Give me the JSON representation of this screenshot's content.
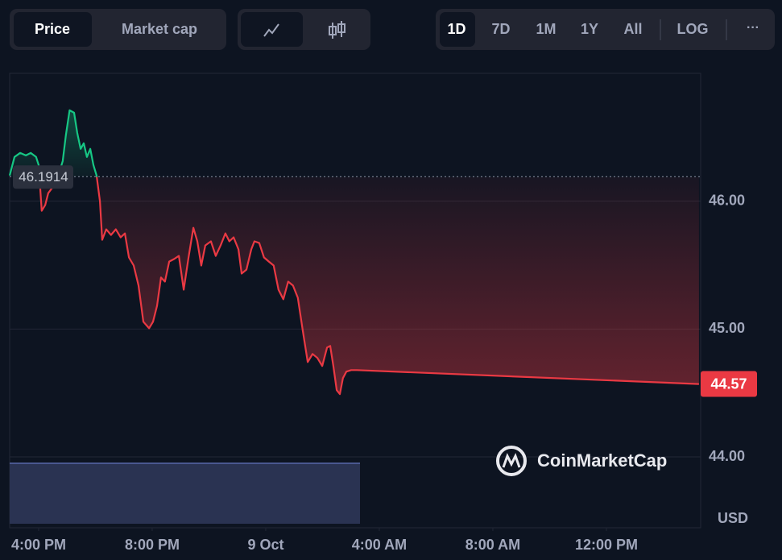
{
  "toolbar": {
    "type_tabs": [
      "Price",
      "Market cap"
    ],
    "ranges": [
      "1D",
      "7D",
      "1M",
      "1Y",
      "All"
    ],
    "log": "LOG",
    "more": "···"
  },
  "chart_data": {
    "type": "line",
    "watermark": "CoinMarketCap",
    "currency": "USD",
    "x": [
      -1.02,
      -0.85,
      -0.65,
      -0.45,
      -0.28,
      -0.09,
      0,
      0.11,
      0.23,
      0.34,
      0.51,
      0.68,
      0.85,
      0.96,
      1.09,
      1.25,
      1.36,
      1.48,
      1.59,
      1.7,
      1.82,
      1.93,
      2.04,
      2.16,
      2.24,
      2.38,
      2.55,
      2.72,
      2.89,
      3.04,
      3.18,
      3.35,
      3.52,
      3.69,
      3.89,
      4.03,
      4.17,
      4.31,
      4.45,
      4.6,
      4.77,
      4.94,
      5.11,
      5.28,
      5.45,
      5.59,
      5.73,
      5.87,
      6.07,
      6.24,
      6.41,
      6.58,
      6.72,
      6.87,
      7.04,
      7.15,
      7.32,
      7.49,
      7.6,
      7.77,
      7.94,
      8.11,
      8.28,
      8.45,
      8.62,
      8.79,
      8.96,
      9.13,
      9.3,
      9.48,
      9.65,
      9.82,
      9.99,
      10.16,
      10.27,
      10.38,
      10.5,
      10.61,
      10.72,
      10.84,
      11.01,
      11.21,
      23.26
    ],
    "values": [
      46.201,
      46.346,
      46.377,
      46.358,
      46.377,
      46.346,
      46.283,
      45.925,
      45.969,
      46.063,
      46.113,
      46.189,
      46.314,
      46.516,
      46.711,
      46.692,
      46.535,
      46.409,
      46.453,
      46.346,
      46.409,
      46.283,
      46.201,
      46.0,
      45.698,
      45.78,
      45.736,
      45.78,
      45.717,
      45.748,
      45.56,
      45.497,
      45.34,
      45.057,
      45.006,
      45.057,
      45.182,
      45.403,
      45.371,
      45.528,
      45.547,
      45.572,
      45.308,
      45.56,
      45.792,
      45.686,
      45.497,
      45.654,
      45.686,
      45.572,
      45.654,
      45.748,
      45.686,
      45.717,
      45.623,
      45.434,
      45.465,
      45.623,
      45.686,
      45.673,
      45.56,
      45.528,
      45.497,
      45.308,
      45.233,
      45.371,
      45.34,
      45.245,
      44.994,
      44.742,
      44.805,
      44.774,
      44.711,
      44.855,
      44.868,
      44.711,
      44.522,
      44.491,
      44.616,
      44.667,
      44.679,
      44.679,
      44.57
    ],
    "reference_value": 46.1914,
    "up_color": "#16c784",
    "down_color": "#ea3943",
    "xlim": [
      -1.02,
      23.32
    ],
    "xticks": [
      {
        "value": 0,
        "label": "4:00 PM"
      },
      {
        "value": 4,
        "label": "8:00 PM"
      },
      {
        "value": 8,
        "label": "9 Oct"
      },
      {
        "value": 12,
        "label": "4:00 AM"
      },
      {
        "value": 16,
        "label": "8:00 AM"
      },
      {
        "value": 20,
        "label": "12:00 PM"
      }
    ],
    "ylim": [
      44,
      47
    ],
    "yticks": [
      {
        "value": 44,
        "label": "44.00"
      },
      {
        "value": 45,
        "label": "45.00"
      },
      {
        "value": 46,
        "label": "46.00"
      }
    ],
    "grid": true
  }
}
